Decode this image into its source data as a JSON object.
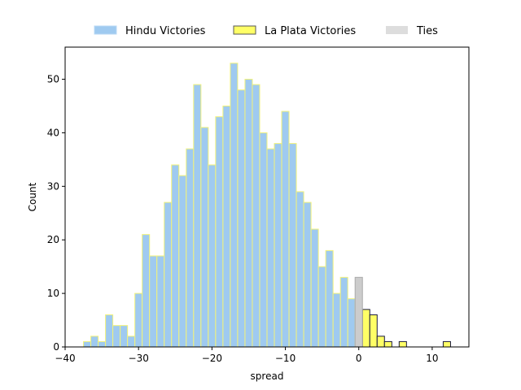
{
  "chart_data": {
    "type": "bar",
    "xlabel": "spread",
    "ylabel": "Count",
    "xlim": [
      -40,
      15
    ],
    "ylim": [
      0,
      56
    ],
    "xticks": [
      -40,
      -30,
      -20,
      -10,
      0,
      10
    ],
    "yticks": [
      0,
      10,
      20,
      30,
      40,
      50
    ],
    "bin_width": 1,
    "legend_position": "top-center",
    "series": [
      {
        "name": "Hindu Victories",
        "fill": "#9fcaf0",
        "edge": "#f2f27a",
        "x": [
          -37,
          -36,
          -35,
          -34,
          -33,
          -32,
          -31,
          -30,
          -29,
          -28,
          -27,
          -26,
          -25,
          -24,
          -23,
          -22,
          -21,
          -20,
          -19,
          -18,
          -17,
          -16,
          -15,
          -14,
          -13,
          -12,
          -11,
          -10,
          -9,
          -8,
          -7,
          -6,
          -5,
          -4,
          -3,
          -2,
          -1
        ],
        "values": [
          1,
          2,
          1,
          6,
          4,
          4,
          2,
          10,
          21,
          17,
          17,
          27,
          34,
          32,
          37,
          49,
          41,
          34,
          43,
          45,
          53,
          48,
          50,
          49,
          40,
          37,
          38,
          44,
          38,
          29,
          27,
          22,
          15,
          18,
          10,
          13,
          9
        ]
      },
      {
        "name": "La Plata Victories",
        "fill": "#ffff66",
        "edge": "#1a1a40",
        "x": [
          1,
          2,
          3,
          4,
          6,
          12
        ],
        "values": [
          7,
          6,
          2,
          1,
          1,
          1
        ]
      },
      {
        "name": "Ties",
        "fill": "#cccccc",
        "edge": "#aaaaaa",
        "legend_fill": "#dddddd",
        "x": [
          0
        ],
        "values": [
          13
        ]
      }
    ]
  }
}
